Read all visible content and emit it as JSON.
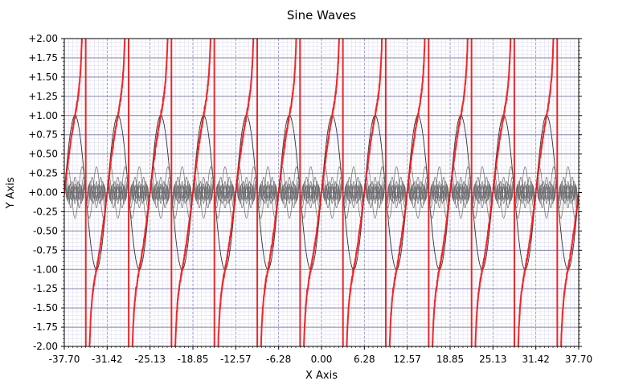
{
  "chart_data": {
    "type": "line",
    "title": "Sine Waves",
    "xlabel": "X Axis",
    "ylabel": "Y Axis",
    "xlim": [
      -37.7,
      37.7
    ],
    "ylim": [
      -2.0,
      2.0
    ],
    "x_ticks": [
      -37.7,
      -31.42,
      -25.13,
      -18.85,
      -12.57,
      -6.28,
      0.0,
      6.28,
      12.57,
      18.85,
      25.13,
      31.42,
      37.7
    ],
    "x_tick_labels": [
      "-37.70",
      "-31.42",
      "-25.13",
      "-18.85",
      "-12.57",
      "-6.28",
      "0.00",
      "6.28",
      "12.57",
      "18.85",
      "25.13",
      "31.42",
      "37.70"
    ],
    "y_ticks": [
      2.0,
      1.75,
      1.5,
      1.25,
      1.0,
      0.75,
      0.5,
      0.25,
      0.0,
      -0.25,
      -0.5,
      -0.75,
      -1.0,
      -1.25,
      -1.5,
      -1.75,
      -2.0
    ],
    "y_tick_labels": [
      "+2.00",
      "+1.75",
      "+1.50",
      "+1.25",
      "+1.00",
      "+0.75",
      "+0.50",
      "+0.25",
      "+0.00",
      "-0.25",
      "-0.50",
      "-0.75",
      "-1.00",
      "-1.25",
      "-1.50",
      "-1.75",
      "-2.00"
    ],
    "grid": true,
    "colors": {
      "red_series": "#ee1111",
      "main_sine": "#333333",
      "harmonics": "#666666",
      "major_h_grid": "#8080b0",
      "major_v_grid": "#8888cc",
      "minor_grid": "#d8d8f4"
    },
    "series": [
      {
        "function": "sin(x)",
        "amplitude": 1.0,
        "frequency": 1
      },
      {
        "function": "sin(3x)/3",
        "amplitude": 0.333,
        "frequency": 3
      },
      {
        "function": "sin(5x)/5",
        "amplitude": 0.2,
        "frequency": 5
      },
      {
        "function": "sin(7x)/7",
        "amplitude": 0.143,
        "frequency": 7
      },
      {
        "function": "sin(9x)/9",
        "amplitude": 0.111,
        "frequency": 9
      },
      {
        "function": "sin(11x)/11",
        "amplitude": 0.091,
        "frequency": 11
      },
      {
        "function": "sin(13x)/13",
        "amplitude": 0.077,
        "frequency": 13
      },
      {
        "function": "noisy tan-like overlay",
        "amplitude": 2.0,
        "period": 6.2832
      }
    ]
  }
}
